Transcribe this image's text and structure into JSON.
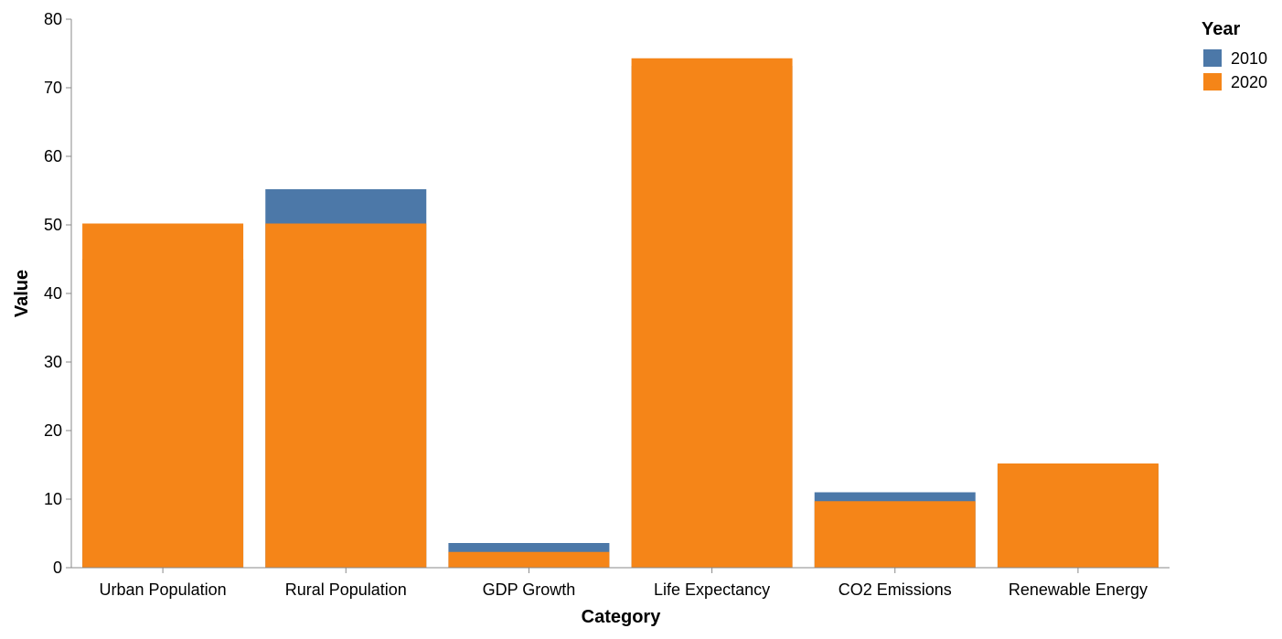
{
  "chart_data": {
    "type": "bar",
    "layout": "overlapped",
    "title": "",
    "xlabel": "Category",
    "ylabel": "Value",
    "ylim": [
      0,
      80
    ],
    "yticks": [
      0,
      10,
      20,
      30,
      40,
      50,
      60,
      70,
      80
    ],
    "grid": false,
    "categories": [
      "Urban Population",
      "Rural Population",
      "GDP Growth",
      "Life Expectancy",
      "CO2 Emissions",
      "Renewable Energy"
    ],
    "series": [
      {
        "name": "2010",
        "color": "#4c78a8",
        "values": [
          45,
          55.2,
          3.6,
          73.2,
          11,
          15
        ]
      },
      {
        "name": "2020",
        "color": "#f58518",
        "values": [
          50.2,
          50.2,
          2.3,
          74.3,
          9.7,
          15.2
        ]
      }
    ],
    "legend": {
      "title": "Year",
      "position": "top-right"
    }
  }
}
